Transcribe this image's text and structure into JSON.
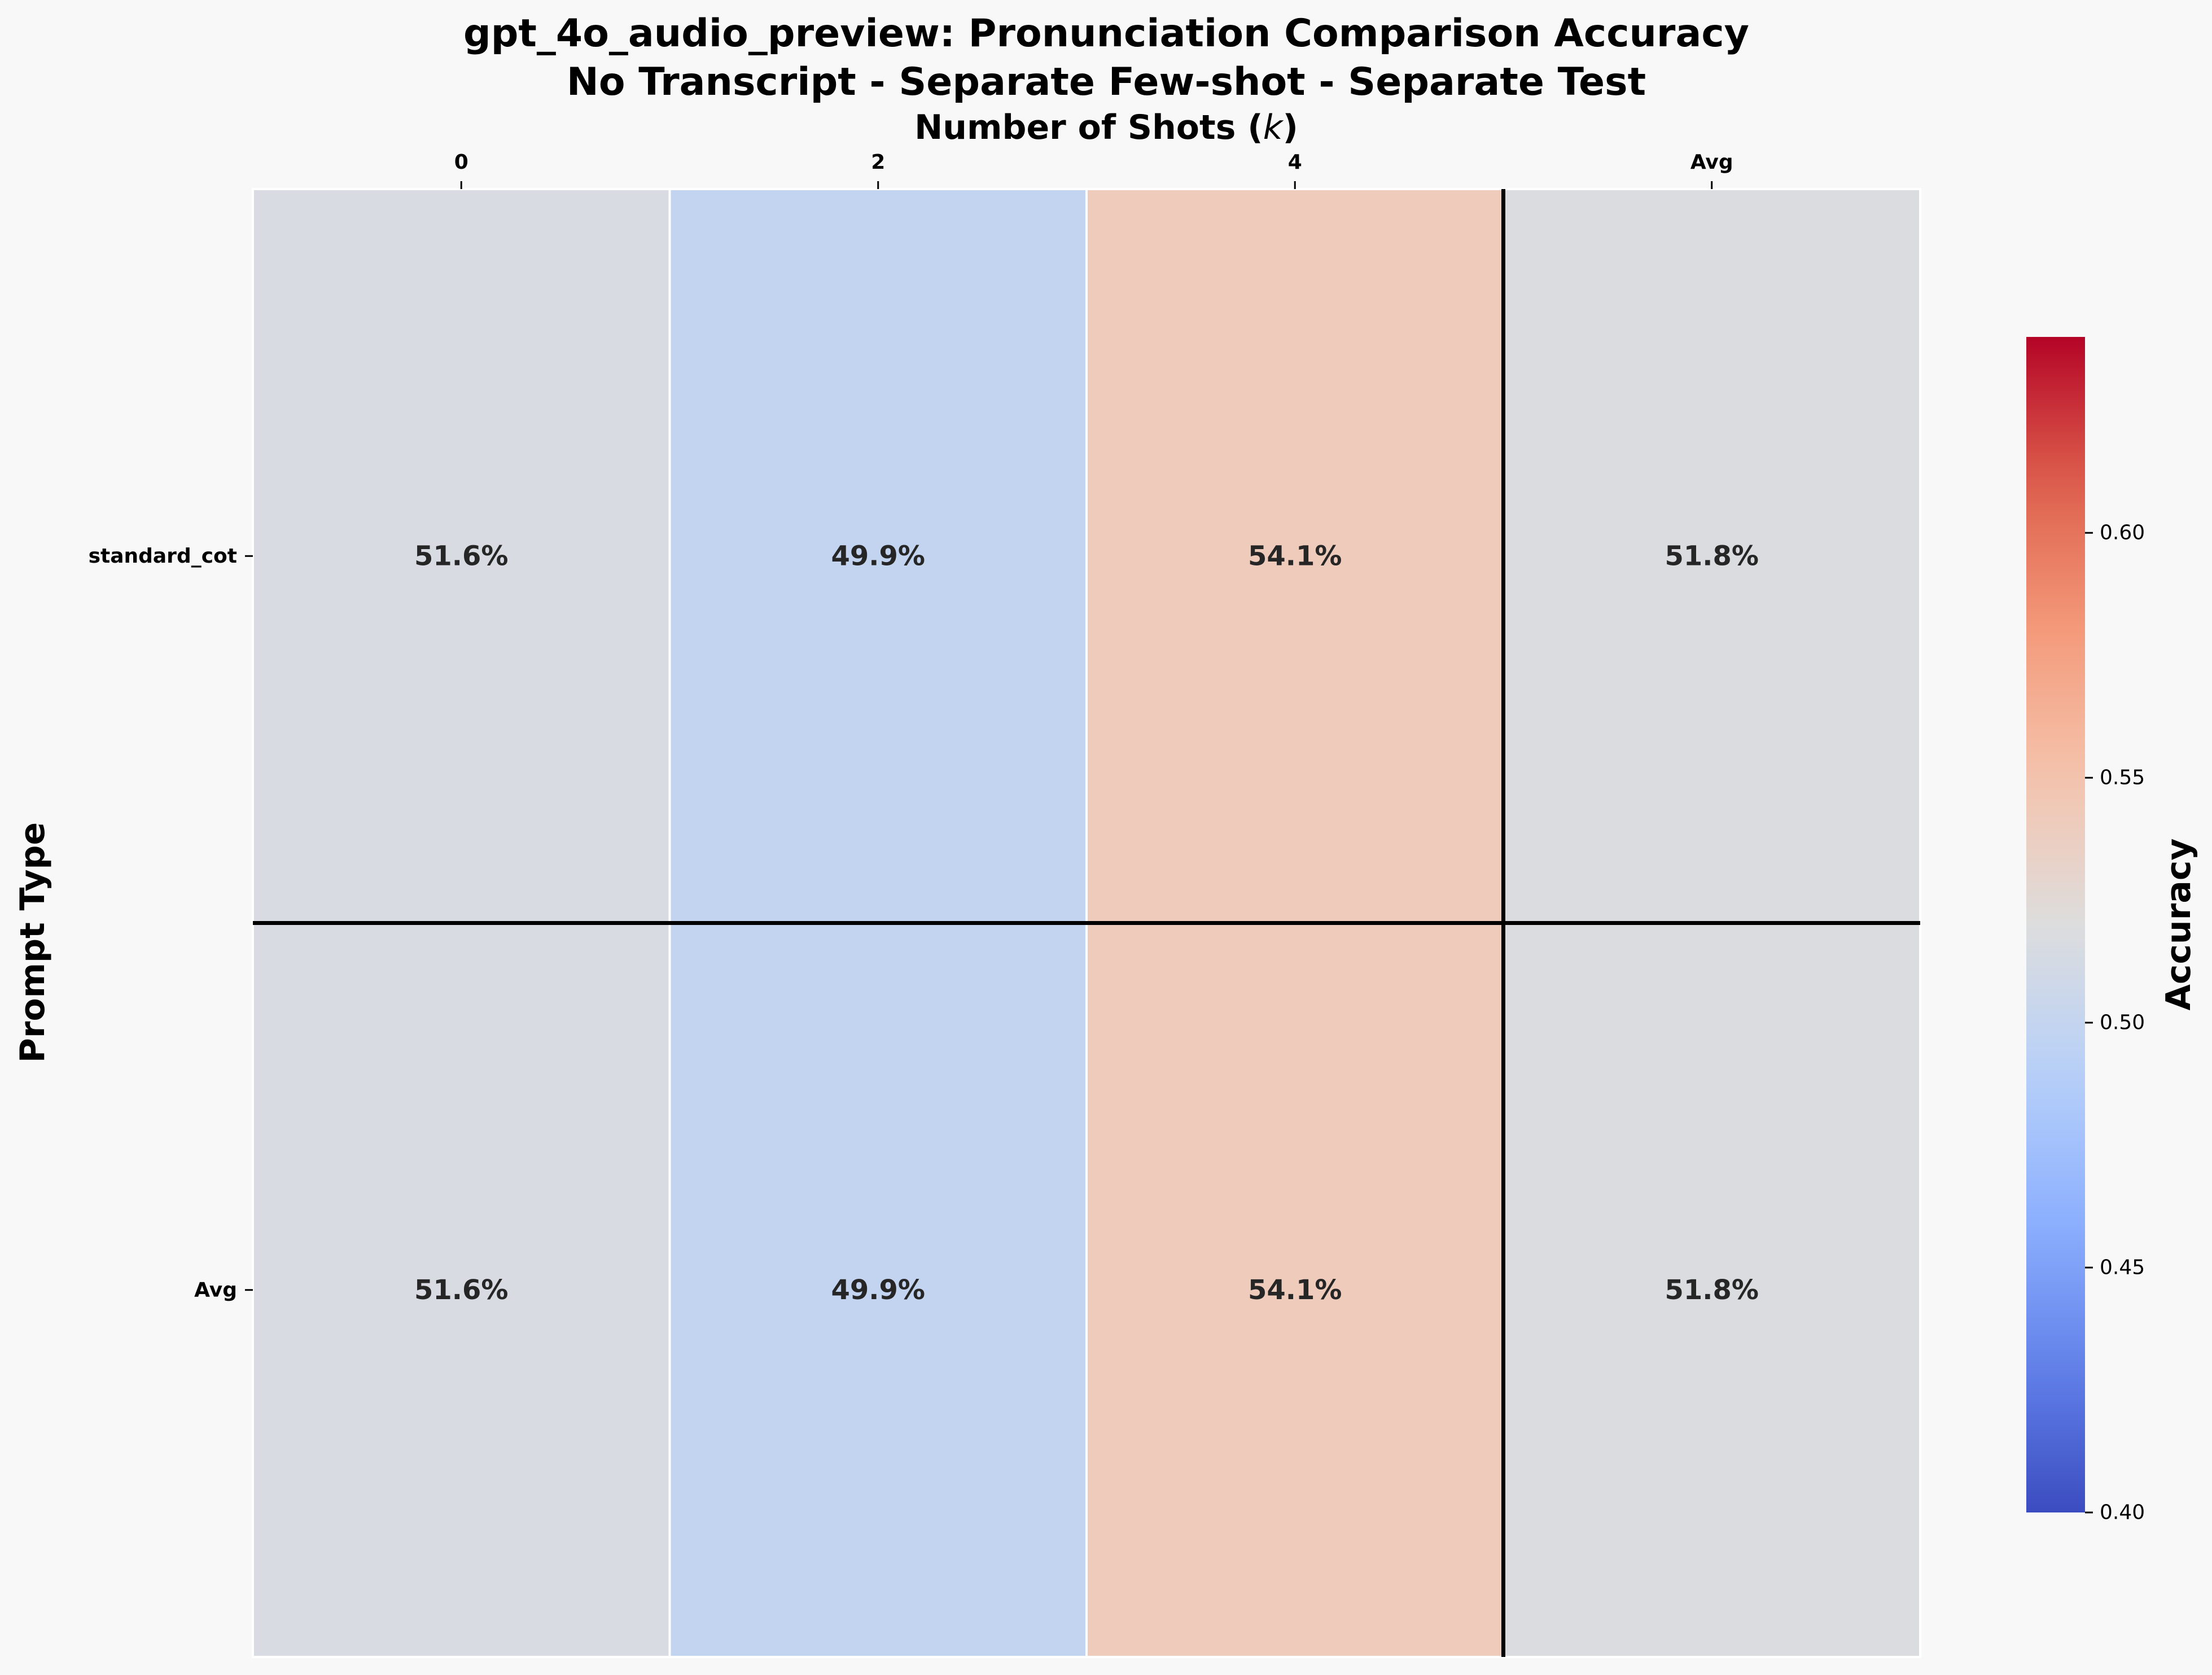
{
  "chart_data": {
    "type": "heatmap",
    "title": "gpt_4o_audio_preview: Pronunciation Comparison Accuracy",
    "subtitle": "No Transcript - Separate Few-shot - Separate Test",
    "xlabel_text": "Number of Shots (",
    "xlabel_var": "k",
    "xlabel_close": ")",
    "ylabel": "Prompt Type",
    "x_categories": [
      "0",
      "2",
      "4",
      "Avg"
    ],
    "y_categories": [
      "standard_cot",
      "Avg"
    ],
    "values": [
      [
        0.516,
        0.499,
        0.541,
        0.518
      ],
      [
        0.516,
        0.499,
        0.541,
        0.518
      ]
    ],
    "cell_labels": [
      [
        "51.6%",
        "49.9%",
        "54.1%",
        "51.8%"
      ],
      [
        "51.6%",
        "49.9%",
        "54.1%",
        "51.8%"
      ]
    ],
    "colorbar": {
      "label": "Accuracy",
      "vmin": 0.4,
      "vmax": 0.64,
      "ticks": [
        "0.40",
        "0.45",
        "0.50",
        "0.55",
        "0.60"
      ],
      "colormap": "coolwarm"
    },
    "colors": {
      "background": "#f8f8f8",
      "separator": "#000000",
      "cell_border": "#ffffff",
      "text": "#262626"
    }
  }
}
